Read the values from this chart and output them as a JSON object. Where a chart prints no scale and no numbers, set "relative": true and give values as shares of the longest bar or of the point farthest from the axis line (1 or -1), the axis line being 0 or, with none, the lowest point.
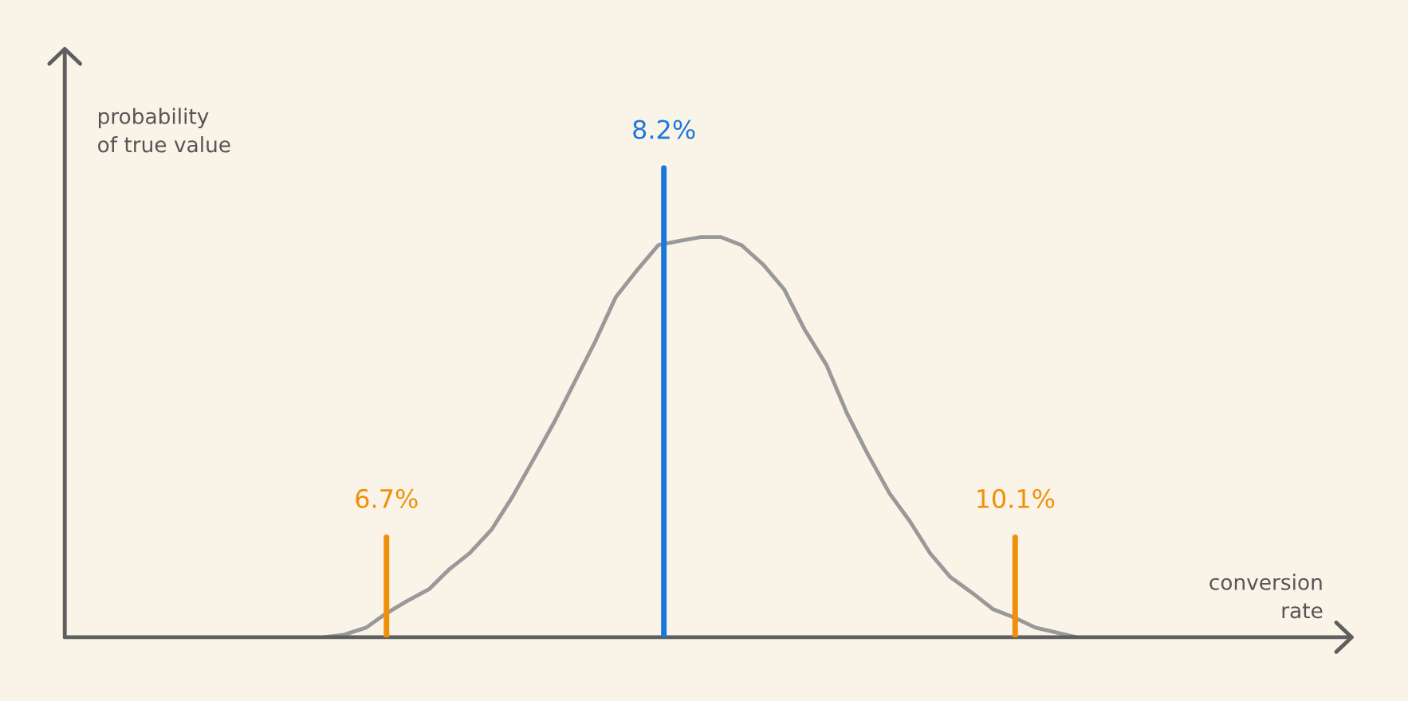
{
  "chart_data": {
    "type": "line",
    "relative": true,
    "xlabel": "conversion\nrate",
    "ylabel": "probability\nof true value",
    "xlim": [
      4.96,
      11.92
    ],
    "xticks": [
      {
        "value": 6.7,
        "label": "6.7%"
      },
      {
        "value": 10.1,
        "label": "10.1%"
      }
    ],
    "series": [
      {
        "color": "#999999",
        "x": [
          6.36,
          6.47,
          6.59,
          6.7,
          6.81,
          6.93,
          7.04,
          7.15,
          7.27,
          7.38,
          7.49,
          7.61,
          7.72,
          7.83,
          7.94,
          8.06,
          8.17,
          8.28,
          8.4,
          8.51,
          8.62,
          8.74,
          8.85,
          8.96,
          9.08,
          9.19,
          9.3,
          9.42,
          9.53,
          9.64,
          9.75,
          9.87,
          9.98,
          10.09,
          10.21,
          10.32,
          10.43
        ],
        "values": [
          0,
          0.006,
          0.024,
          0.06,
          0.09,
          0.12,
          0.17,
          0.21,
          0.27,
          0.35,
          0.44,
          0.54,
          0.64,
          0.74,
          0.85,
          0.92,
          0.98,
          0.99,
          1,
          1,
          0.98,
          0.93,
          0.87,
          0.77,
          0.68,
          0.56,
          0.46,
          0.36,
          0.29,
          0.21,
          0.15,
          0.11,
          0.07,
          0.05,
          0.024,
          0.012,
          0
        ]
      }
    ],
    "ref_lines": [
      {
        "axis": "x",
        "value": 6.7,
        "color": "#f0900a"
      },
      {
        "axis": "x",
        "value": 8.2,
        "color": "#1a78dc",
        "label": "8.2%"
      },
      {
        "axis": "x",
        "value": 10.1,
        "color": "#f0900a"
      }
    ]
  }
}
